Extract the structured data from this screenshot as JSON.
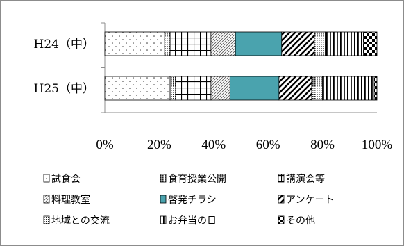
{
  "chart_data": {
    "type": "bar",
    "orientation": "horizontal",
    "stacked": "percent",
    "categories": [
      "H24（中）",
      "H25（中）"
    ],
    "series": [
      {
        "name": "試食会",
        "values": [
          22,
          24
        ],
        "fill": "dots"
      },
      {
        "name": "食育授業公開",
        "values": [
          2,
          2
        ],
        "fill": "dense-dots"
      },
      {
        "name": "講演会等",
        "values": [
          15,
          13
        ],
        "fill": "grid"
      },
      {
        "name": "料理教室",
        "values": [
          9,
          7
        ],
        "fill": "diag"
      },
      {
        "name": "啓発チラシ",
        "values": [
          17,
          18
        ],
        "fill": "solid",
        "color": "#4aa3ae"
      },
      {
        "name": "アンケート",
        "values": [
          12,
          12
        ],
        "fill": "wide-diag"
      },
      {
        "name": "地域との交流",
        "values": [
          4,
          4
        ],
        "fill": "dense-dots"
      },
      {
        "name": "お弁当の日",
        "values": [
          14,
          19
        ],
        "fill": "vlines"
      },
      {
        "name": "その他",
        "values": [
          5,
          1
        ],
        "fill": "checker"
      }
    ],
    "xticks": [
      "0%",
      "20%",
      "40%",
      "60%",
      "80%",
      "100%"
    ],
    "xlim": [
      0,
      100
    ],
    "legend_position": "bottom",
    "grid": false
  }
}
